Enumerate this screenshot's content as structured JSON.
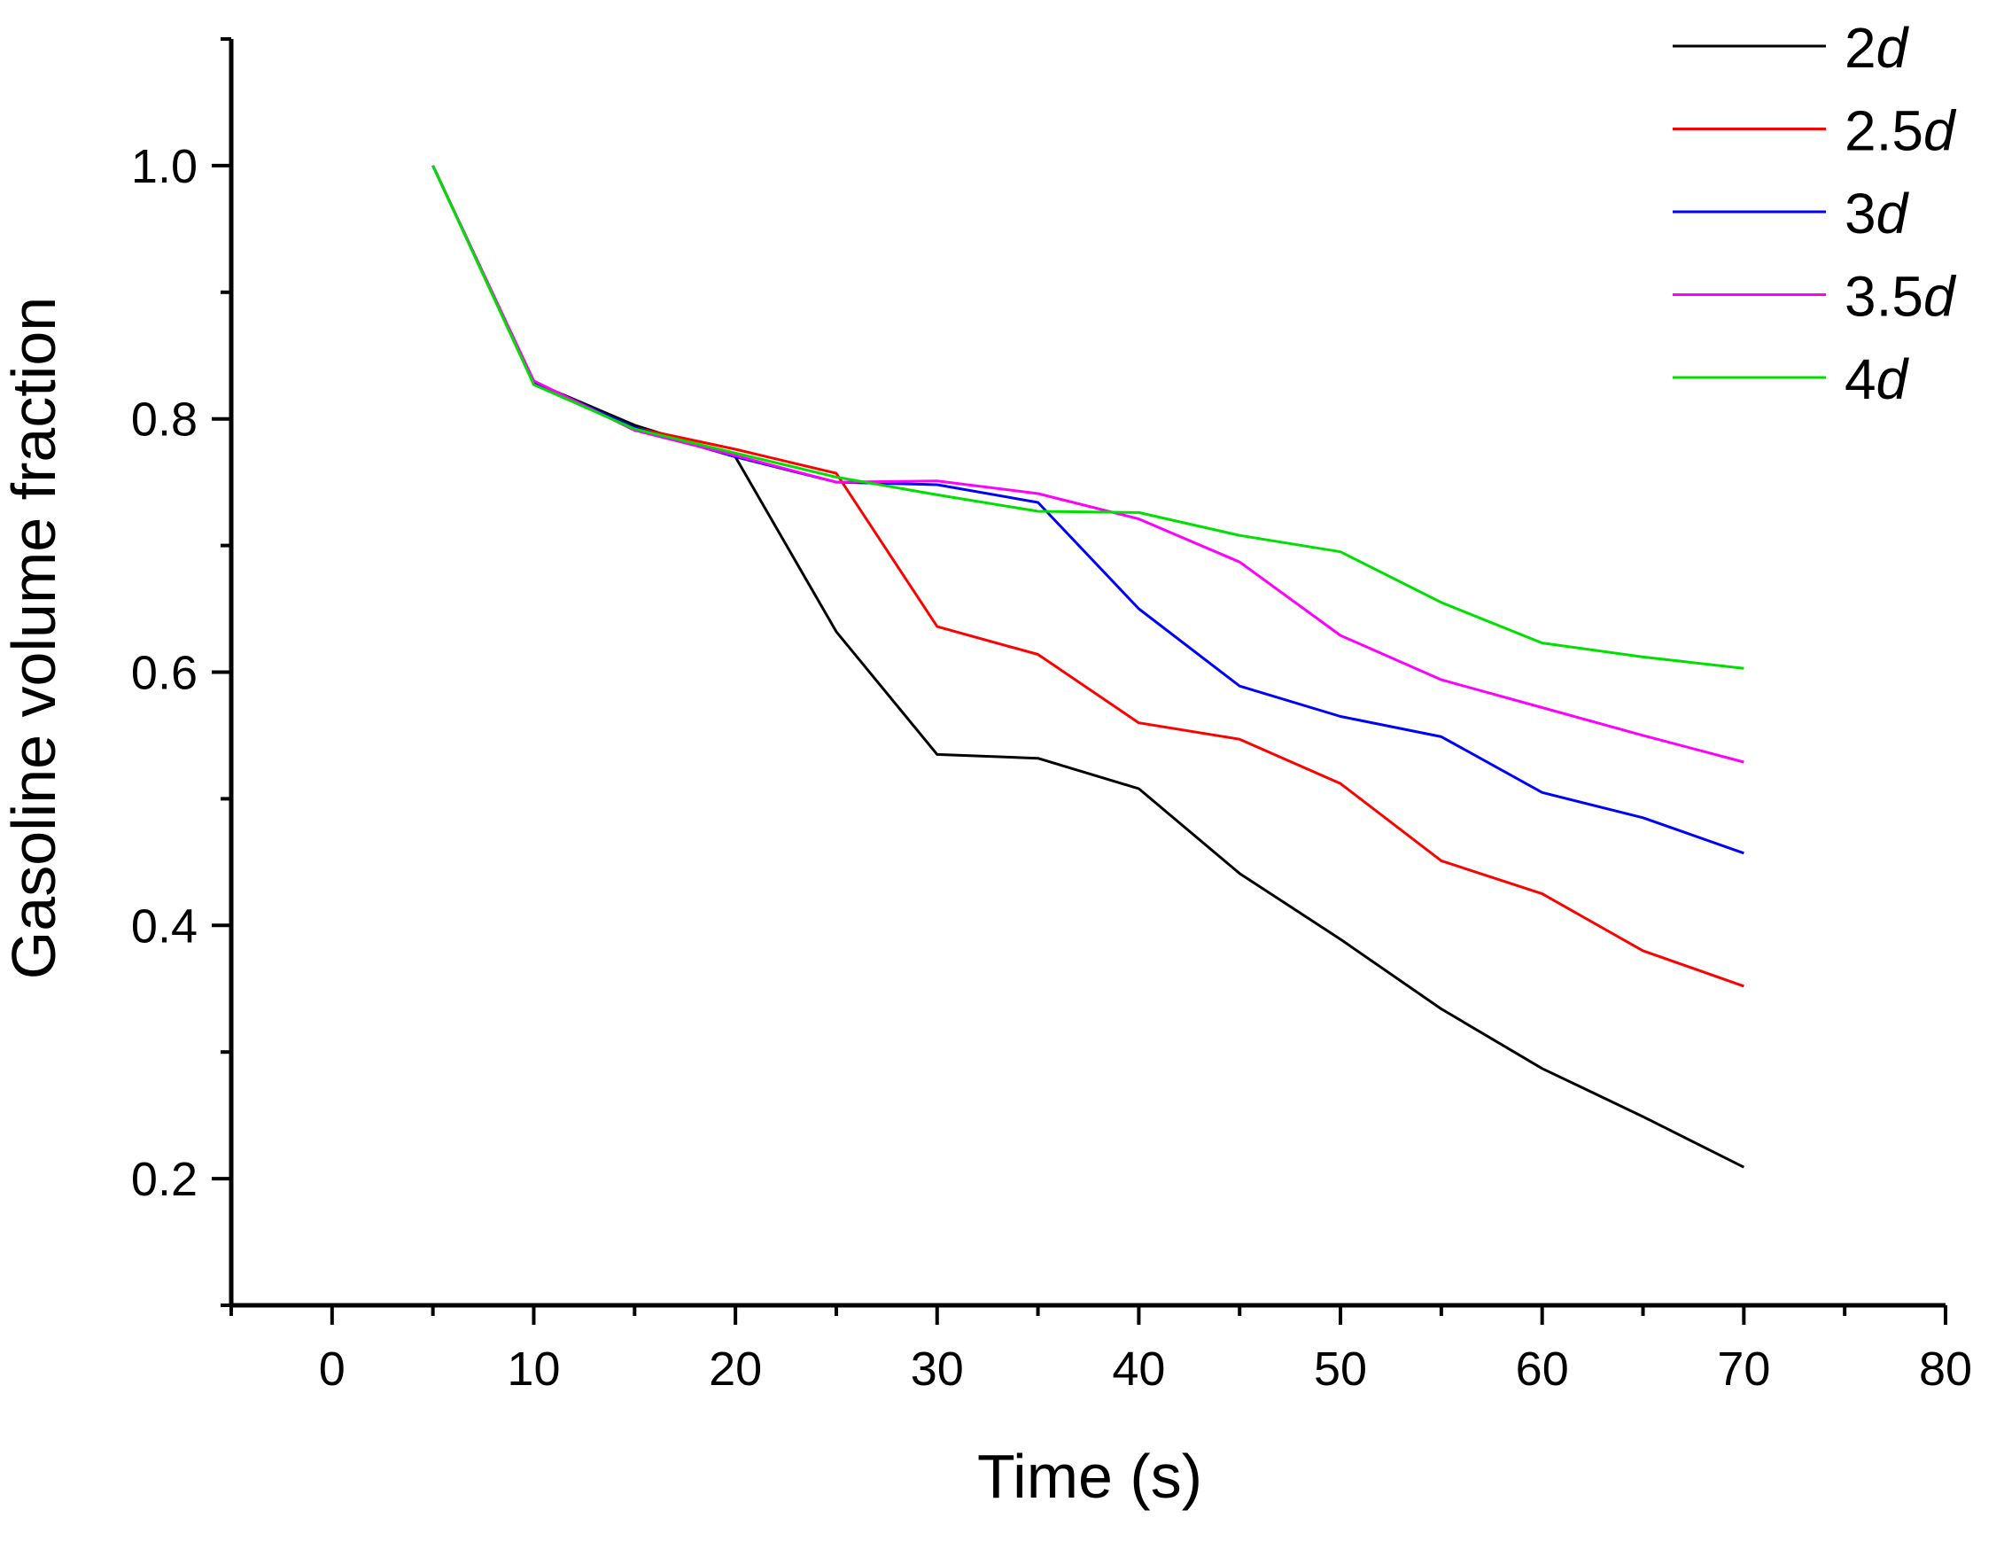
{
  "chart_data": {
    "type": "line",
    "xlabel": "Time (s)",
    "ylabel": "Gasoline volume fraction",
    "xlim": [
      -5,
      80
    ],
    "ylim": [
      0.1,
      1.1
    ],
    "x_ticks": [
      0,
      10,
      20,
      30,
      40,
      50,
      60,
      70,
      80
    ],
    "x_tick_labels": [
      "0",
      "10",
      "20",
      "30",
      "40",
      "50",
      "60",
      "70",
      "80"
    ],
    "x_minor_ticks": [
      -5,
      5,
      15,
      25,
      35,
      45,
      55,
      65,
      75
    ],
    "y_ticks": [
      0.2,
      0.4,
      0.6,
      0.8,
      1.0
    ],
    "y_tick_labels": [
      "0.2",
      "0.4",
      "0.6",
      "0.8",
      "1.0"
    ],
    "y_minor_ticks": [
      0.1,
      0.3,
      0.5,
      0.7,
      0.9,
      1.1
    ],
    "grid": false,
    "legend_position": "top-right",
    "x": [
      5,
      10,
      15,
      20,
      25,
      30,
      35,
      40,
      45,
      50,
      55,
      60,
      65,
      70
    ],
    "series": [
      {
        "name": "2d",
        "number": "2",
        "unit": "d",
        "color": "#000000",
        "values": [
          1.0,
          0.829,
          0.795,
          0.77,
          0.632,
          0.535,
          0.532,
          0.508,
          0.441,
          0.389,
          0.334,
          0.287,
          0.249,
          0.209
        ]
      },
      {
        "name": "2.5d",
        "number": "2.5",
        "unit": "d",
        "color": "#ff0000",
        "values": [
          1.0,
          0.829,
          0.793,
          0.776,
          0.757,
          0.636,
          0.614,
          0.56,
          0.547,
          0.512,
          0.451,
          0.425,
          0.38,
          0.352
        ]
      },
      {
        "name": "3d",
        "number": "3",
        "unit": "d",
        "color": "#0000ff",
        "values": [
          1.0,
          0.829,
          0.793,
          0.77,
          0.75,
          0.748,
          0.734,
          0.65,
          0.589,
          0.565,
          0.549,
          0.505,
          0.485,
          0.457
        ]
      },
      {
        "name": "3.5d",
        "number": "3.5",
        "unit": "d",
        "color": "#ff00ff",
        "values": [
          1.0,
          0.83,
          0.791,
          0.771,
          0.75,
          0.751,
          0.741,
          0.721,
          0.687,
          0.629,
          0.594,
          0.572,
          0.55,
          0.529
        ]
      },
      {
        "name": "4d",
        "number": "4",
        "unit": "d",
        "color": "#00e000",
        "values": [
          1.0,
          0.827,
          0.792,
          0.773,
          0.754,
          0.74,
          0.727,
          0.726,
          0.708,
          0.695,
          0.655,
          0.623,
          0.612,
          0.603
        ]
      }
    ]
  }
}
